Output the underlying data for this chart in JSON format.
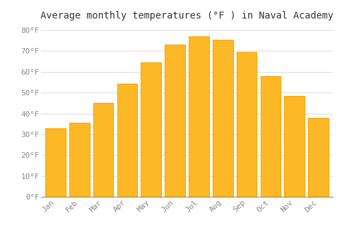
{
  "title": "Average monthly temperatures (°F ) in Naval Academy",
  "months": [
    "Jan",
    "Feb",
    "Mar",
    "Apr",
    "May",
    "Jun",
    "Jul",
    "Aug",
    "Sep",
    "Oct",
    "Nov",
    "Dec"
  ],
  "values": [
    33,
    35.5,
    45,
    54.5,
    64.5,
    73,
    77,
    75.5,
    69.5,
    58,
    48.5,
    38
  ],
  "bar_color": "#FDB827",
  "bar_edge_color": "#FFA500",
  "background_color": "#FFFFFF",
  "grid_color": "#DDDDDD",
  "text_color": "#888888",
  "ylim": [
    0,
    83
  ],
  "yticks": [
    0,
    10,
    20,
    30,
    40,
    50,
    60,
    70,
    80
  ],
  "title_fontsize": 10,
  "tick_fontsize": 8,
  "bar_width": 0.85
}
